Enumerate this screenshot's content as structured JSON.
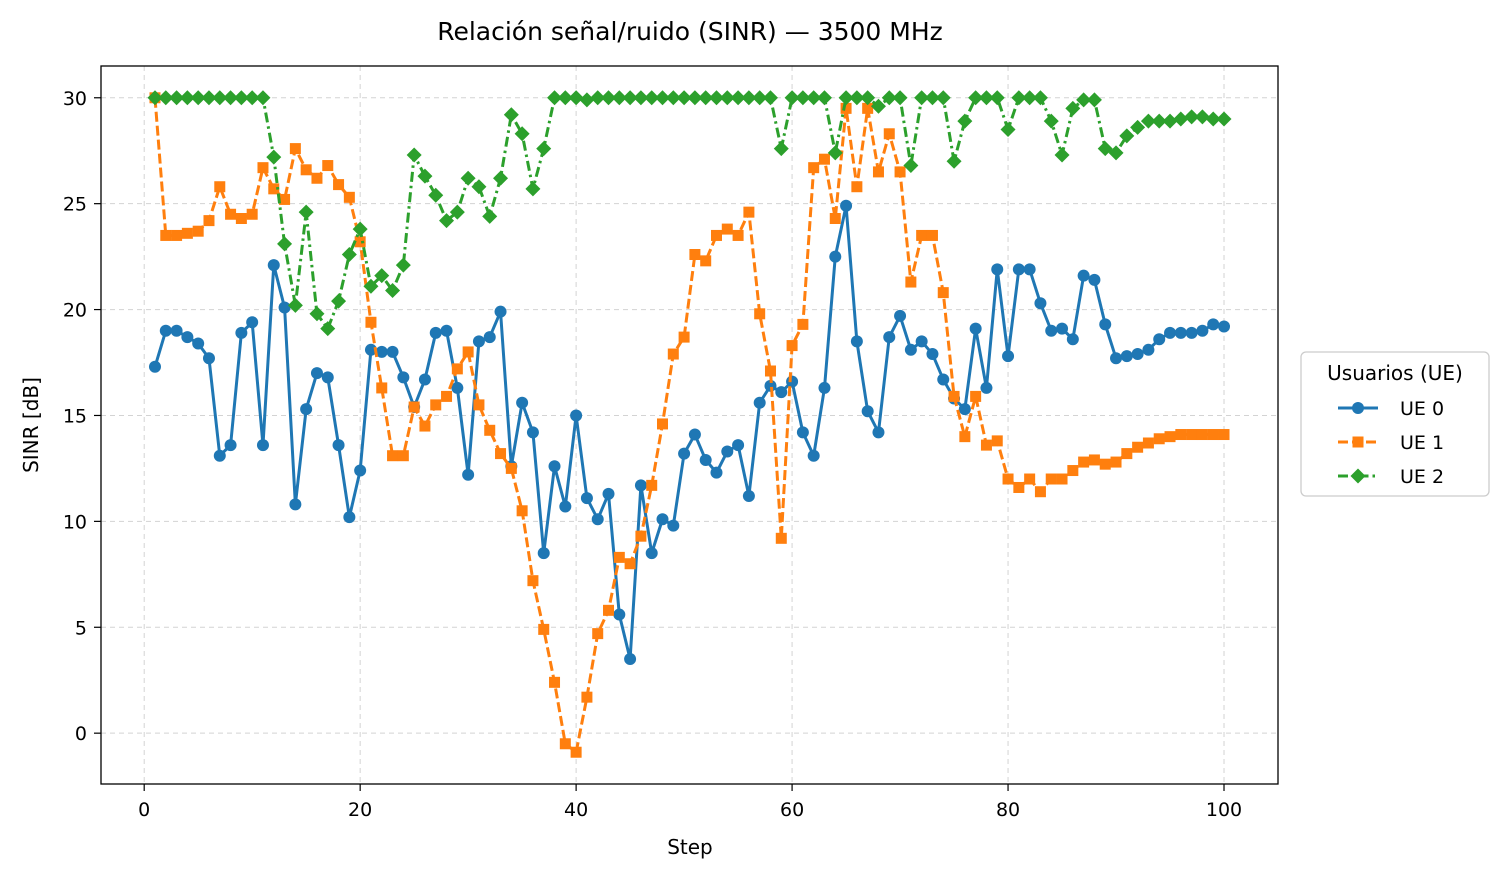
{
  "chart_data": {
    "type": "line",
    "title": "Relación señal/ruido (SINR) — 3500 MHz",
    "xlabel": "Step",
    "ylabel": "SINR [dB]",
    "xlim": [
      -4,
      105
    ],
    "ylim": [
      -2.4,
      31.5
    ],
    "xticks": [
      0,
      20,
      40,
      60,
      80,
      100
    ],
    "yticks": [
      0,
      5,
      10,
      15,
      20,
      25,
      30
    ],
    "grid": true,
    "legend": {
      "title": "Usuarios (UE)",
      "placement": "right-outside"
    },
    "x": [
      1,
      2,
      3,
      4,
      5,
      6,
      7,
      8,
      9,
      10,
      11,
      12,
      13,
      14,
      15,
      16,
      17,
      18,
      19,
      20,
      21,
      22,
      23,
      24,
      25,
      26,
      27,
      28,
      29,
      30,
      31,
      32,
      33,
      34,
      35,
      36,
      37,
      38,
      39,
      40,
      41,
      42,
      43,
      44,
      45,
      46,
      47,
      48,
      49,
      50,
      51,
      52,
      53,
      54,
      55,
      56,
      57,
      58,
      59,
      60,
      61,
      62,
      63,
      64,
      65,
      66,
      67,
      68,
      69,
      70,
      71,
      72,
      73,
      74,
      75,
      76,
      77,
      78,
      79,
      80,
      81,
      82,
      83,
      84,
      85,
      86,
      87,
      88,
      89,
      90,
      91,
      92,
      93,
      94,
      95,
      96,
      97,
      98,
      99,
      100
    ],
    "series": [
      {
        "name": "UE 0",
        "color": "#1f77b4",
        "marker": "circle",
        "linestyle": "solid",
        "values": [
          17.3,
          19.0,
          19.0,
          18.7,
          18.4,
          17.7,
          13.1,
          13.6,
          18.9,
          19.4,
          13.6,
          22.1,
          20.1,
          10.8,
          15.3,
          17.0,
          16.8,
          13.6,
          10.2,
          12.4,
          18.1,
          18.0,
          18.0,
          16.8,
          15.4,
          16.7,
          18.9,
          19.0,
          16.3,
          12.2,
          18.5,
          18.7,
          19.9,
          12.6,
          15.6,
          14.2,
          8.5,
          12.6,
          10.7,
          15.0,
          11.1,
          10.1,
          11.3,
          5.6,
          3.5,
          11.7,
          8.5,
          10.1,
          9.8,
          13.2,
          14.1,
          12.9,
          12.3,
          13.3,
          13.6,
          11.2,
          15.6,
          16.4,
          16.1,
          16.6,
          14.2,
          13.1,
          16.3,
          22.5,
          24.9,
          18.5,
          15.2,
          14.2,
          18.7,
          19.7,
          18.1,
          18.5,
          17.9,
          16.7,
          15.8,
          15.3,
          19.1,
          16.3,
          21.9,
          17.8,
          21.9,
          21.9,
          20.3,
          19.0,
          19.1,
          18.6,
          21.6,
          21.4,
          19.3,
          17.7,
          17.8,
          17.9,
          18.1,
          18.6,
          18.9,
          18.9,
          18.9,
          19.0,
          19.3,
          19.2
        ]
      },
      {
        "name": "UE 1",
        "color": "#ff7f0e",
        "marker": "square",
        "linestyle": "dashed",
        "values": [
          30.0,
          23.5,
          23.5,
          23.6,
          23.7,
          24.2,
          25.8,
          24.5,
          24.3,
          24.5,
          26.7,
          25.7,
          25.2,
          27.6,
          26.6,
          26.2,
          26.8,
          25.9,
          25.3,
          23.2,
          19.4,
          16.3,
          13.1,
          13.1,
          15.4,
          14.5,
          15.5,
          15.9,
          17.2,
          18.0,
          15.5,
          14.3,
          13.2,
          12.5,
          10.5,
          7.2,
          4.9,
          2.4,
          -0.5,
          -0.9,
          1.7,
          4.7,
          5.8,
          8.3,
          8.0,
          9.3,
          11.7,
          14.6,
          17.9,
          18.7,
          22.6,
          22.3,
          23.5,
          23.8,
          23.5,
          24.6,
          19.8,
          17.1,
          9.2,
          18.3,
          19.3,
          26.7,
          27.1,
          24.3,
          29.5,
          25.8,
          29.5,
          26.5,
          28.3,
          26.5,
          21.3,
          23.5,
          23.5,
          20.8,
          15.9,
          14.0,
          15.9,
          13.6,
          13.8,
          12.0,
          11.6,
          12.0,
          11.4,
          12.0,
          12.0,
          12.4,
          12.8,
          12.9,
          12.7,
          12.8,
          13.2,
          13.5,
          13.7,
          13.9,
          14.0,
          14.1,
          14.1,
          14.1,
          14.1,
          14.1
        ]
      },
      {
        "name": "UE 2",
        "color": "#2ca02c",
        "marker": "diamond",
        "linestyle": "dashdot",
        "values": [
          30.0,
          30.0,
          30.0,
          30.0,
          30.0,
          30.0,
          30.0,
          30.0,
          30.0,
          30.0,
          30.0,
          27.2,
          23.1,
          20.2,
          24.6,
          19.8,
          19.1,
          20.4,
          22.6,
          23.8,
          21.1,
          21.6,
          20.9,
          22.1,
          27.3,
          26.3,
          25.4,
          24.2,
          24.6,
          26.2,
          25.8,
          24.4,
          26.2,
          29.2,
          28.3,
          25.7,
          27.6,
          30.0,
          30.0,
          30.0,
          29.9,
          30.0,
          30.0,
          30.0,
          30.0,
          30.0,
          30.0,
          30.0,
          30.0,
          30.0,
          30.0,
          30.0,
          30.0,
          30.0,
          30.0,
          30.0,
          30.0,
          30.0,
          27.6,
          30.0,
          30.0,
          30.0,
          30.0,
          27.4,
          30.0,
          30.0,
          30.0,
          29.6,
          30.0,
          30.0,
          26.8,
          30.0,
          30.0,
          30.0,
          27.0,
          28.9,
          30.0,
          30.0,
          30.0,
          28.5,
          30.0,
          30.0,
          30.0,
          28.9,
          27.3,
          29.5,
          29.9,
          29.9,
          27.6,
          27.4,
          28.2,
          28.6,
          28.9,
          28.9,
          28.9,
          29.0,
          29.1,
          29.1,
          29.0,
          29.0
        ]
      }
    ]
  }
}
